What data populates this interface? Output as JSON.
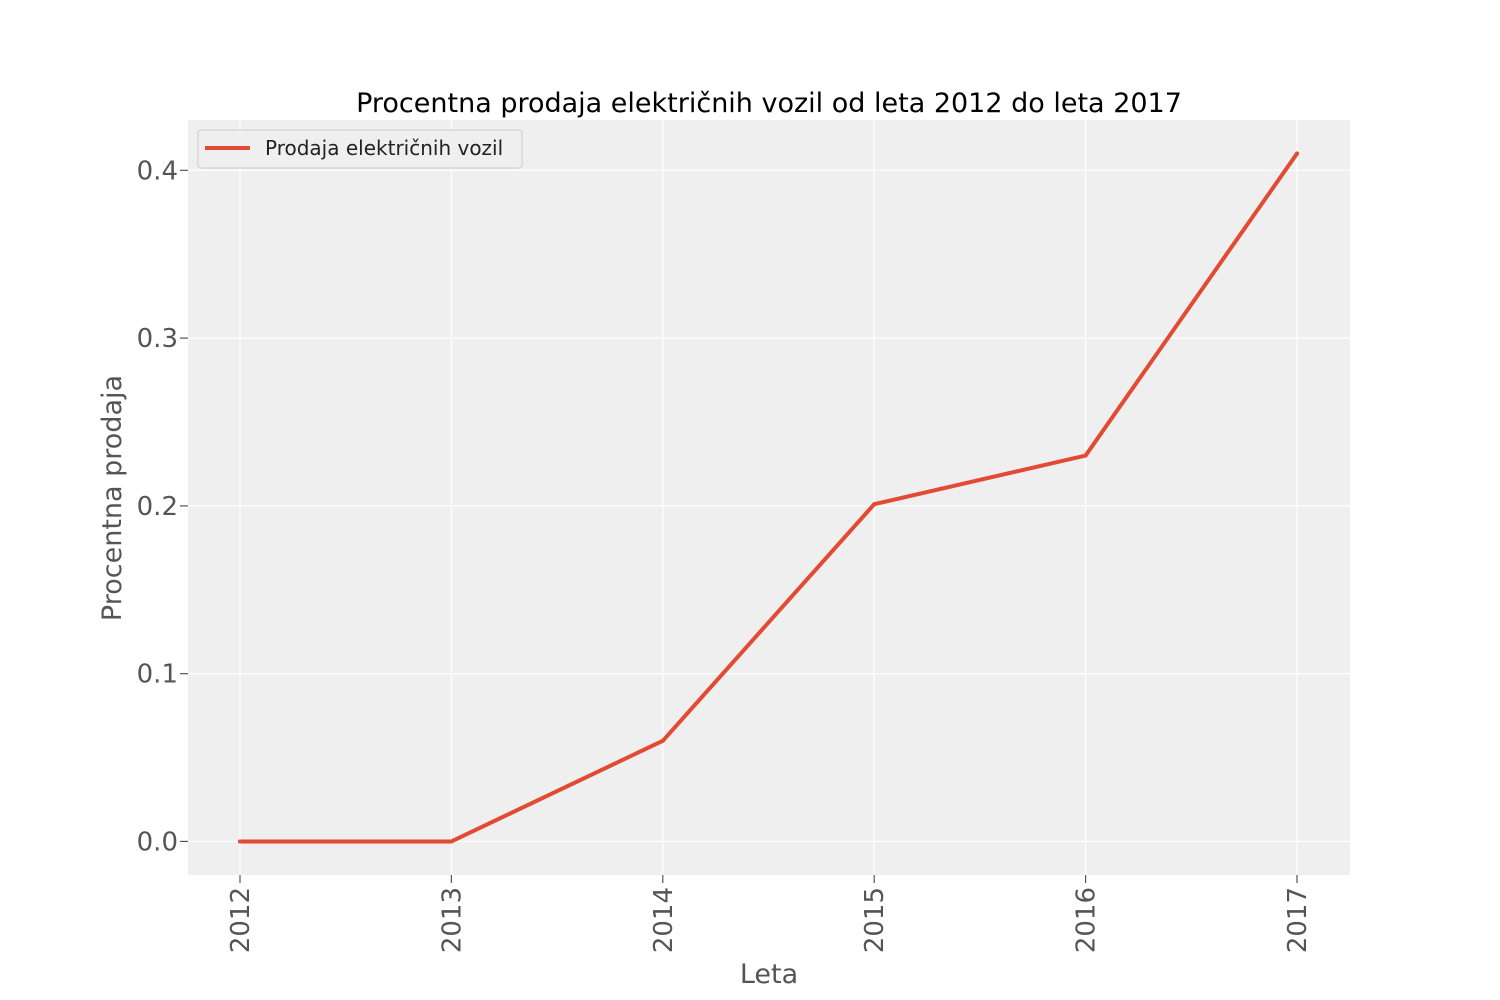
{
  "chart_data": {
    "type": "line",
    "title": "Procentna prodaja  električnih vozil od leta 2012 do leta 2017",
    "xlabel": "Leta",
    "ylabel": "Procentna prodaja",
    "categories": [
      "2012",
      "2013",
      "2014",
      "2015",
      "2016",
      "2017"
    ],
    "series": [
      {
        "name": "Prodaja električnih vozil",
        "values": [
          0.0,
          0.0,
          0.06,
          0.201,
          0.23,
          0.41
        ],
        "color": "#E24A33"
      }
    ],
    "yticks": [
      "0.0",
      "0.1",
      "0.2",
      "0.3",
      "0.4"
    ],
    "ylim": [
      -0.02,
      0.43
    ],
    "grid": true,
    "legend_position": "top-left",
    "plot_background": "#EFEFEF",
    "grid_color": "#FFFFFF"
  }
}
